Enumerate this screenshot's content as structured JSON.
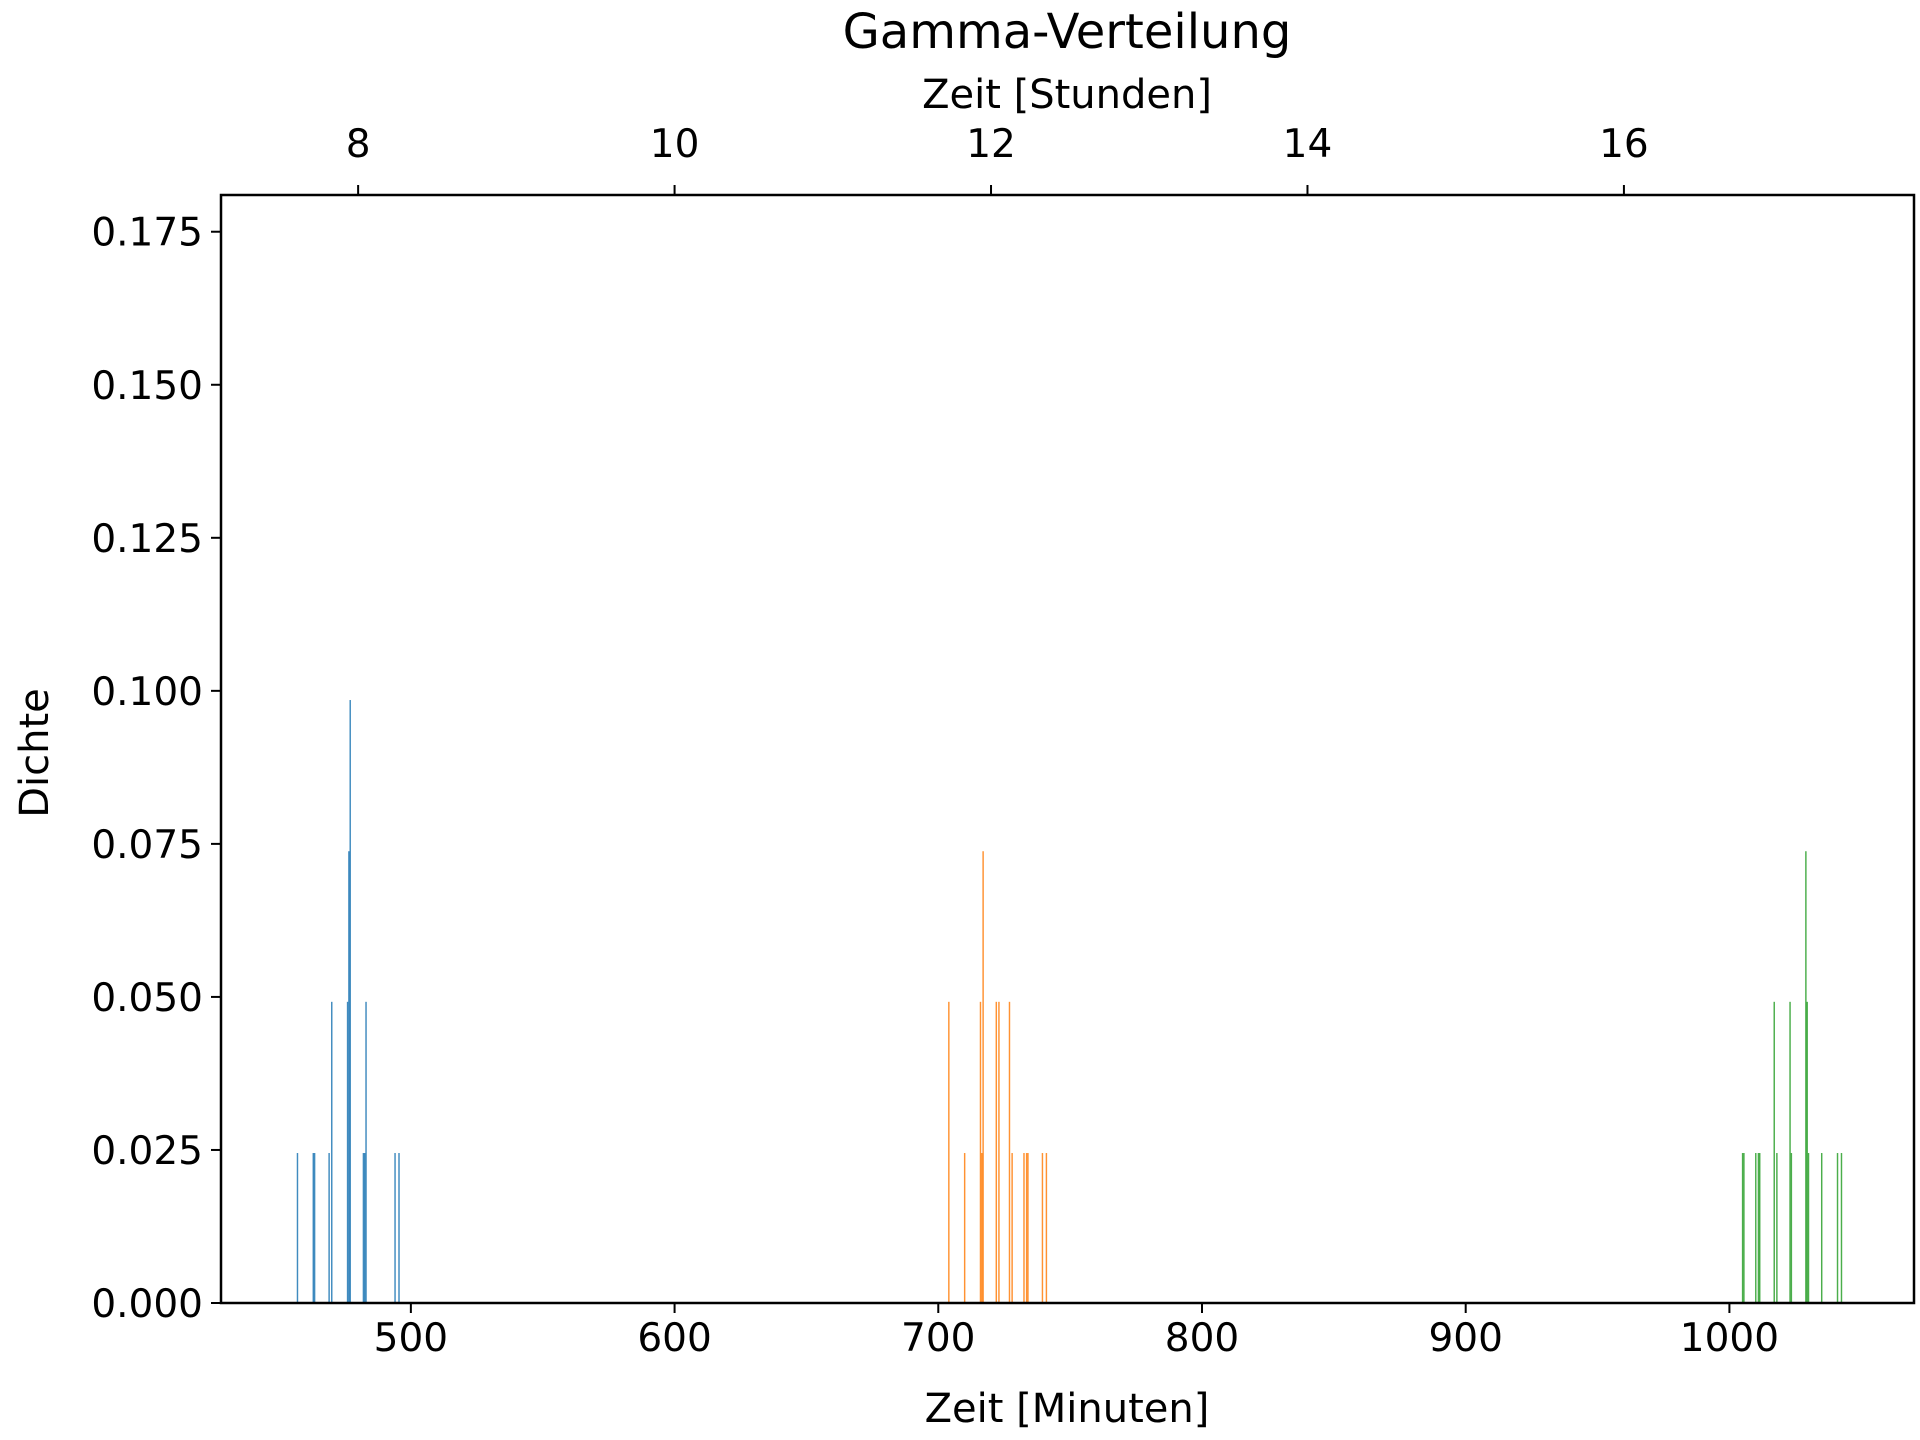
{
  "chart_data": {
    "type": "bar",
    "title": "Gamma-Verteilung",
    "xlabel": "Zeit [Minuten]",
    "x2label": "Zeit [Stunden]",
    "ylabel": "Dichte",
    "xlim": [
      428,
      1070
    ],
    "ylim": [
      0,
      0.181
    ],
    "x_ticks": [
      500,
      600,
      700,
      800,
      900,
      1000
    ],
    "x_tick_labels": [
      "500",
      "600",
      "700",
      "800",
      "900",
      "1000"
    ],
    "x2_ticks": [
      8,
      10,
      12,
      14,
      16
    ],
    "x2_tick_labels": [
      "8",
      "10",
      "12",
      "14",
      "16"
    ],
    "y_ticks": [
      0,
      0.025,
      0.05,
      0.075,
      0.1,
      0.125,
      0.15,
      0.175
    ],
    "y_tick_labels": [
      "0.000",
      "0.025",
      "0.050",
      "0.075",
      "0.100",
      "0.125",
      "0.150",
      "0.175"
    ],
    "grid": false,
    "series": [
      {
        "color": "#1f77b4",
        "values": [
          [
            457,
            0.0245
          ],
          [
            463,
            0.0245
          ],
          [
            463.5,
            0.0245
          ],
          [
            469,
            0.0245
          ],
          [
            470,
            0.0492
          ],
          [
            476,
            0.0492
          ],
          [
            476.5,
            0.0738
          ],
          [
            477,
            0.0985
          ],
          [
            482,
            0.0245
          ],
          [
            482.5,
            0.0245
          ],
          [
            483,
            0.0492
          ],
          [
            494,
            0.0245
          ],
          [
            495.5,
            0.0245
          ]
        ]
      },
      {
        "color": "#ff7f0e",
        "values": [
          [
            704,
            0.0492
          ],
          [
            710,
            0.0245
          ],
          [
            716,
            0.0492
          ],
          [
            716.5,
            0.0245
          ],
          [
            717,
            0.0738
          ],
          [
            722,
            0.0492
          ],
          [
            723,
            0.0492
          ],
          [
            727,
            0.0492
          ],
          [
            728,
            0.0245
          ],
          [
            732.5,
            0.0245
          ],
          [
            733.5,
            0.0245
          ],
          [
            734,
            0.0245
          ],
          [
            739.5,
            0.0245
          ],
          [
            741,
            0.0245
          ]
        ]
      },
      {
        "color": "#2ca02c",
        "values": [
          [
            1005,
            0.0245
          ],
          [
            1005.5,
            0.0245
          ],
          [
            1010,
            0.0245
          ],
          [
            1011,
            0.0245
          ],
          [
            1011.5,
            0.0245
          ],
          [
            1017,
            0.0492
          ],
          [
            1018,
            0.0245
          ],
          [
            1023,
            0.0492
          ],
          [
            1023.5,
            0.0245
          ],
          [
            1029,
            0.0738
          ],
          [
            1029.5,
            0.0492
          ],
          [
            1030,
            0.0245
          ],
          [
            1035,
            0.0245
          ],
          [
            1041,
            0.0245
          ],
          [
            1042.5,
            0.0245
          ]
        ]
      }
    ]
  }
}
